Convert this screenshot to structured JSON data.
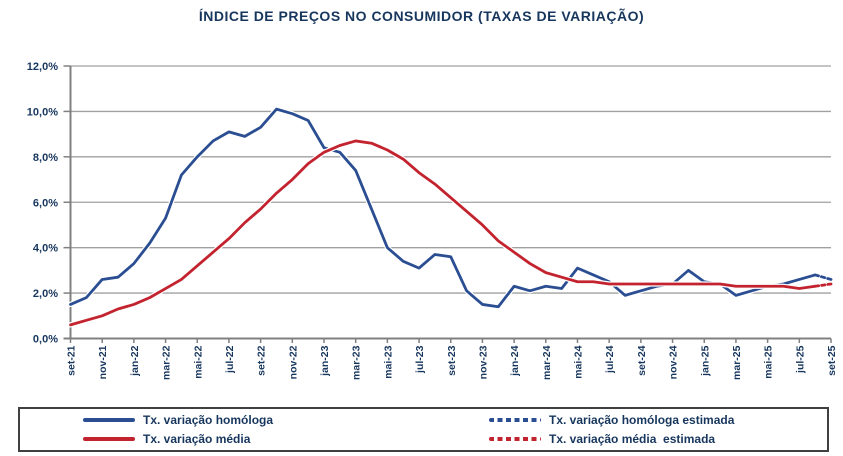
{
  "colors": {
    "homologa_line": "#2B4E93",
    "media_line": "#C3232E",
    "text": "#17365D",
    "gridline": "#A0A0A0",
    "axis": "#808080",
    "legend_border": "#404040",
    "background": "#FFFFFF"
  },
  "chart_data": {
    "type": "line",
    "title": "ÍNDICE DE PREÇOS NO CONSUMIDOR (TAXAS DE VARIAÇÃO)",
    "xlabel": "",
    "ylabel": "",
    "ylim": [
      0,
      12
    ],
    "grid": true,
    "legend_position": "bottom",
    "x_tick_step": 2,
    "categories": [
      "set-21",
      "out-21",
      "nov-21",
      "dez-21",
      "jan-22",
      "fev-22",
      "mar-22",
      "abr-22",
      "mai-22",
      "jun-22",
      "jul-22",
      "ago-22",
      "set-22",
      "out-22",
      "nov-22",
      "dez-22",
      "jan-23",
      "fev-23",
      "mar-23",
      "abr-23",
      "mai-23",
      "jun-23",
      "jul-23",
      "ago-23",
      "set-23",
      "out-23",
      "nov-23",
      "dez-23",
      "jan-24",
      "fev-24",
      "mar-24",
      "abr-24",
      "mai-24",
      "jun-24",
      "jul-24",
      "ago-24",
      "set-24",
      "out-24",
      "nov-24",
      "dez-24",
      "jan-25",
      "fev-25",
      "mar-25",
      "abr-25",
      "mai-25",
      "jun-25",
      "jul-25",
      "ago-25",
      "set-25"
    ],
    "x_tick_labels": [
      "set-21",
      "nov-21",
      "jan-22",
      "mar-22",
      "mai-22",
      "jul-22",
      "set-22",
      "nov-22",
      "jan-23",
      "mar-23",
      "mai-23",
      "jul-23",
      "set-23",
      "nov-23",
      "jan-24",
      "mar-24",
      "mai-24",
      "jul-24",
      "set-24",
      "nov-24",
      "jan-25",
      "mar-25",
      "mai-25",
      "jul-25",
      "set-25"
    ],
    "y_ticks": {
      "values": [
        0,
        2,
        4,
        6,
        8,
        10,
        12
      ],
      "labels": [
        "0,0%",
        "2,0%",
        "4,0%",
        "6,0%",
        "8,0%",
        "10,0%",
        "12,0%"
      ]
    },
    "unit": "%",
    "series": [
      {
        "name": "Tx. variação homóloga",
        "color": "#2B4E93",
        "dash": false,
        "start_index": 0,
        "values": [
          1.5,
          1.8,
          2.6,
          2.7,
          3.3,
          4.2,
          5.3,
          7.2,
          8.0,
          8.7,
          9.1,
          8.9,
          9.3,
          10.1,
          9.9,
          9.6,
          8.4,
          8.2,
          7.4,
          5.7,
          4.0,
          3.4,
          3.1,
          3.7,
          3.6,
          2.1,
          1.5,
          1.4,
          2.3,
          2.1,
          2.3,
          2.2,
          3.1,
          2.8,
          2.5,
          1.9,
          2.1,
          2.3,
          2.4,
          3.0,
          2.5,
          2.4,
          1.9,
          2.1,
          2.3,
          2.4,
          2.6,
          2.8
        ]
      },
      {
        "name": "Tx. variação homóloga estimada",
        "color": "#2B4E93",
        "dash": true,
        "start_index": 47,
        "values": [
          2.8,
          2.6
        ]
      },
      {
        "name": "Tx. variação média",
        "color": "#C3232E",
        "dash": false,
        "start_index": 0,
        "values": [
          0.6,
          0.8,
          1.0,
          1.3,
          1.5,
          1.8,
          2.2,
          2.6,
          3.2,
          3.8,
          4.4,
          5.1,
          5.7,
          6.4,
          7.0,
          7.7,
          8.2,
          8.5,
          8.7,
          8.6,
          8.3,
          7.9,
          7.3,
          6.8,
          6.2,
          5.6,
          5.0,
          4.3,
          3.8,
          3.3,
          2.9,
          2.7,
          2.5,
          2.5,
          2.4,
          2.4,
          2.4,
          2.4,
          2.4,
          2.4,
          2.4,
          2.4,
          2.3,
          2.3,
          2.3,
          2.3,
          2.2,
          2.3
        ]
      },
      {
        "name": "Tx. variação média  estimada",
        "color": "#C3232E",
        "dash": true,
        "start_index": 47,
        "values": [
          2.3,
          2.4
        ]
      }
    ]
  },
  "legend": {
    "items": [
      {
        "label": "Tx. variação homóloga",
        "series": 0
      },
      {
        "label": "Tx. variação homóloga estimada",
        "series": 1
      },
      {
        "label": "Tx. variação média",
        "series": 2
      },
      {
        "label": "Tx. variação média  estimada",
        "series": 3
      }
    ]
  }
}
